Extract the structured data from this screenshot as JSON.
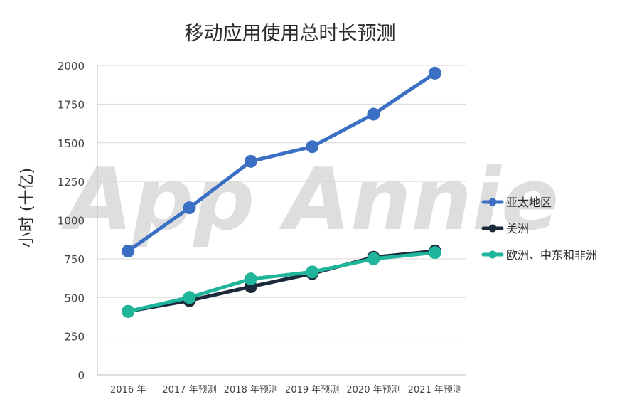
{
  "chart_data": {
    "type": "line",
    "title": "移动应用使用总时长预测",
    "xlabel": "",
    "ylabel": "小时 (十亿)",
    "categories": [
      "2016 年",
      "2017 年预测",
      "2018 年预测",
      "2019 年预测",
      "2020 年预测",
      "2021 年预测"
    ],
    "ylim": [
      0,
      2000
    ],
    "yticks": [
      0,
      250,
      500,
      750,
      1000,
      1250,
      1500,
      1750,
      2000
    ],
    "grid": true,
    "legend_position": "right",
    "watermark": "App Annie",
    "series": [
      {
        "name": "亚太地区",
        "color": "#3a6fc4",
        "values": [
          800,
          1080,
          1380,
          1475,
          1685,
          1950
        ]
      },
      {
        "name": "美洲",
        "color": "#1b2a3b",
        "values": [
          410,
          480,
          570,
          655,
          760,
          800
        ]
      },
      {
        "name": "欧洲、中东和非洲",
        "color": "#1fb59a",
        "values": [
          410,
          500,
          620,
          665,
          750,
          790
        ]
      }
    ]
  }
}
